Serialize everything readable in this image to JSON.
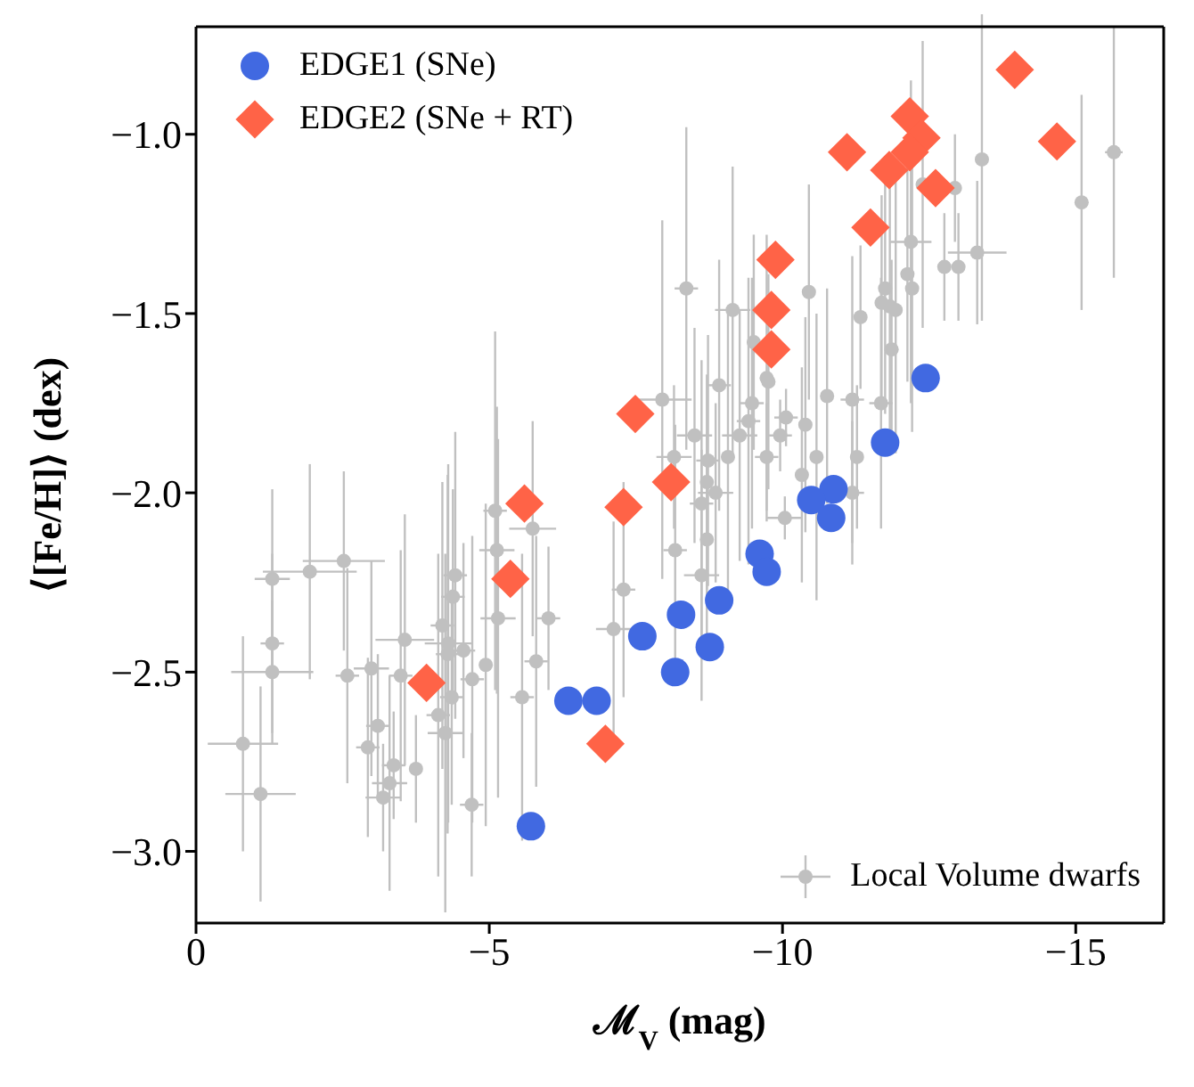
{
  "chart_data": {
    "type": "scatter",
    "xlabel": "ℳ$_{V}$ (mag)",
    "ylabel": "⟨[Fe/H]⟩ (dex)",
    "xlim": [
      0,
      -16.5
    ],
    "xticks": [
      0,
      {
        "value": -5,
        "label": "−5"
      },
      {
        "value": -10,
        "label": "−10"
      },
      {
        "value": -15,
        "label": "−15"
      }
    ],
    "ylim": [
      -3.2,
      -0.7
    ],
    "yticks": [
      {
        "value": -1.0,
        "label": "−1.0"
      },
      {
        "value": -1.5,
        "label": "−1.5"
      },
      {
        "value": -2.0,
        "label": "−2.0"
      },
      {
        "value": -2.5,
        "label": "−2.5"
      },
      {
        "value": -3.0,
        "label": "−3.0"
      }
    ],
    "legend": "top left",
    "series": [
      {
        "name": "Local Volume dwarfs",
        "color": "#c0c0c0",
        "marker": "circle",
        "x": [
          -15.65,
          -15.1,
          -13.4,
          -13.32,
          -13.0,
          -12.76,
          -12.39,
          -12.94,
          -12.19,
          -12.13,
          -12.21,
          -11.75,
          -11.69,
          -11.83,
          -11.93,
          -11.33,
          -11.86,
          -10.45,
          -8.36,
          -9.15,
          -9.51,
          -8.92,
          -9.73,
          -9.76,
          -7.95,
          -9.48,
          -10.76,
          -11.19,
          -11.68,
          -10.06,
          -10.39,
          -9.42,
          -9.27,
          -8.5,
          -9.96,
          -8.15,
          -8.73,
          -9.07,
          -9.73,
          -10.58,
          -11.27,
          -8.71,
          -8.86,
          -10.33,
          -11.19,
          -5.1,
          -8.62,
          -5.74,
          -10.04,
          -5.13,
          -8.17,
          -8.71,
          -1.3,
          -1.94,
          -2.52,
          -4.42,
          -8.62,
          -4.38,
          -7.29,
          -5.15,
          -6.01,
          -4.2,
          -7.12,
          -3.56,
          -1.3,
          -4.3,
          -4.29,
          -4.56,
          -1.3,
          -2.58,
          -2.99,
          -3.49,
          -4.71,
          -4.94,
          -5.8,
          -4.36,
          -5.56,
          -3.1,
          -4.13,
          -4.25,
          -0.8,
          -2.93,
          -3.37,
          -3.75,
          -3.3,
          -1.1,
          -3.19,
          -4.7
        ],
        "values": [
          -1.05,
          -1.19,
          -1.07,
          -1.33,
          -1.37,
          -1.37,
          -1.14,
          -1.15,
          -1.3,
          -1.39,
          -1.43,
          -1.43,
          -1.47,
          -1.48,
          -1.49,
          -1.51,
          -1.6,
          -1.44,
          -1.43,
          -1.49,
          -1.58,
          -1.7,
          -1.68,
          -1.69,
          -1.74,
          -1.75,
          -1.73,
          -1.74,
          -1.75,
          -1.79,
          -1.81,
          -1.8,
          -1.84,
          -1.84,
          -1.84,
          -1.9,
          -1.91,
          -1.9,
          -1.9,
          -1.9,
          -1.9,
          -1.97,
          -2.0,
          -1.95,
          -2.0,
          -2.05,
          -2.03,
          -2.1,
          -2.07,
          -2.16,
          -2.16,
          -2.13,
          -2.24,
          -2.22,
          -2.19,
          -2.23,
          -2.23,
          -2.29,
          -2.27,
          -2.35,
          -2.35,
          -2.37,
          -2.38,
          -2.41,
          -2.42,
          -2.42,
          -2.45,
          -2.44,
          -2.5,
          -2.51,
          -2.49,
          -2.51,
          -2.52,
          -2.48,
          -2.47,
          -2.57,
          -2.57,
          -2.65,
          -2.62,
          -2.67,
          -2.7,
          -2.71,
          -2.76,
          -2.77,
          -2.81,
          -2.84,
          -2.85,
          -2.87
        ],
        "errors": [
          0.35,
          0.3,
          0.45,
          0.2,
          0.15,
          0.15,
          0.4,
          0.15,
          0.45,
          0.3,
          0.4,
          0.35,
          0.3,
          0.35,
          0.4,
          0.2,
          0.25,
          0.3,
          0.45,
          0.4,
          0.3,
          0.35,
          0.4,
          0.3,
          0.5,
          0.35,
          0.3,
          0.4,
          0.35,
          0.08,
          0.3,
          0.4,
          0.35,
          0.3,
          0.1,
          0.2,
          0.35,
          0.4,
          0.15,
          0.4,
          0.2,
          0.3,
          0.25,
          0.3,
          0.2,
          0.5,
          0.4,
          0.3,
          0.06,
          0.4,
          0.35,
          0.3,
          0.25,
          0.3,
          0.25,
          0.4,
          0.35,
          0.3,
          0.3,
          0.5,
          0.2,
          0.4,
          0.3,
          0.35,
          0.25,
          0.5,
          0.5,
          0.3,
          0.2,
          0.3,
          0.3,
          0.35,
          0.4,
          0.45,
          0.35,
          0.3,
          0.4,
          0.2,
          0.45,
          0.5,
          0.3,
          0.25,
          0.15,
          0.15,
          0.3,
          0.3,
          0.15,
          0.2
        ],
        "xerrors": [
          0.15,
          0.1,
          0.1,
          0.5,
          0.1,
          0.1,
          0.1,
          0.1,
          0.35,
          0.1,
          0.1,
          0.1,
          0.1,
          0.1,
          0.1,
          0.1,
          0.1,
          0.1,
          0.2,
          0.3,
          0.1,
          0.2,
          0.1,
          0.1,
          0.5,
          0.2,
          0.1,
          0.2,
          0.2,
          0.2,
          0.1,
          0.2,
          0.3,
          0.3,
          0.2,
          0.3,
          0.2,
          0.1,
          0.2,
          0.1,
          0.1,
          0.1,
          0.3,
          0.1,
          0.2,
          0.2,
          0.2,
          0.4,
          0.3,
          0.3,
          0.2,
          0.1,
          0.3,
          0.8,
          0.7,
          0.2,
          0.3,
          0.2,
          0.2,
          0.3,
          0.2,
          0.2,
          0.3,
          0.5,
          0.2,
          0.4,
          0.2,
          0.2,
          0.7,
          0.2,
          0.3,
          0.2,
          0.2,
          0.1,
          0.2,
          0.2,
          0.2,
          0.2,
          0.2,
          0.3,
          0.6,
          0.2,
          0.2,
          0.1,
          0.3,
          0.6,
          0.3,
          0.2
        ]
      },
      {
        "name": "EDGE1 (SNe)",
        "color": "#4169e1",
        "marker": "circle",
        "x": [
          -12.44,
          -11.75,
          -10.87,
          -10.49,
          -10.83,
          -9.61,
          -9.73,
          -8.92,
          -8.27,
          -7.61,
          -8.76,
          -8.17,
          -6.35,
          -6.83,
          -5.71
        ],
        "values": [
          -1.68,
          -1.86,
          -1.99,
          -2.02,
          -2.07,
          -2.17,
          -2.22,
          -2.3,
          -2.34,
          -2.4,
          -2.43,
          -2.5,
          -2.58,
          -2.58,
          -2.93
        ]
      },
      {
        "name": "EDGE2 (SNe + RT)",
        "color": "#ff6347",
        "marker": "diamond",
        "x": [
          -13.96,
          -12.17,
          -12.37,
          -12.17,
          -11.1,
          -11.82,
          -12.61,
          -14.68,
          -11.5,
          -9.88,
          -9.81,
          -9.81,
          -7.49,
          -8.1,
          -5.6,
          -7.29,
          -5.36,
          -3.93,
          -6.98
        ],
        "values": [
          -0.82,
          -0.95,
          -1.01,
          -1.05,
          -1.05,
          -1.1,
          -1.15,
          -1.02,
          -1.26,
          -1.35,
          -1.49,
          -1.6,
          -1.78,
          -1.97,
          -2.03,
          -2.04,
          -2.24,
          -2.53,
          -2.7
        ]
      }
    ]
  }
}
